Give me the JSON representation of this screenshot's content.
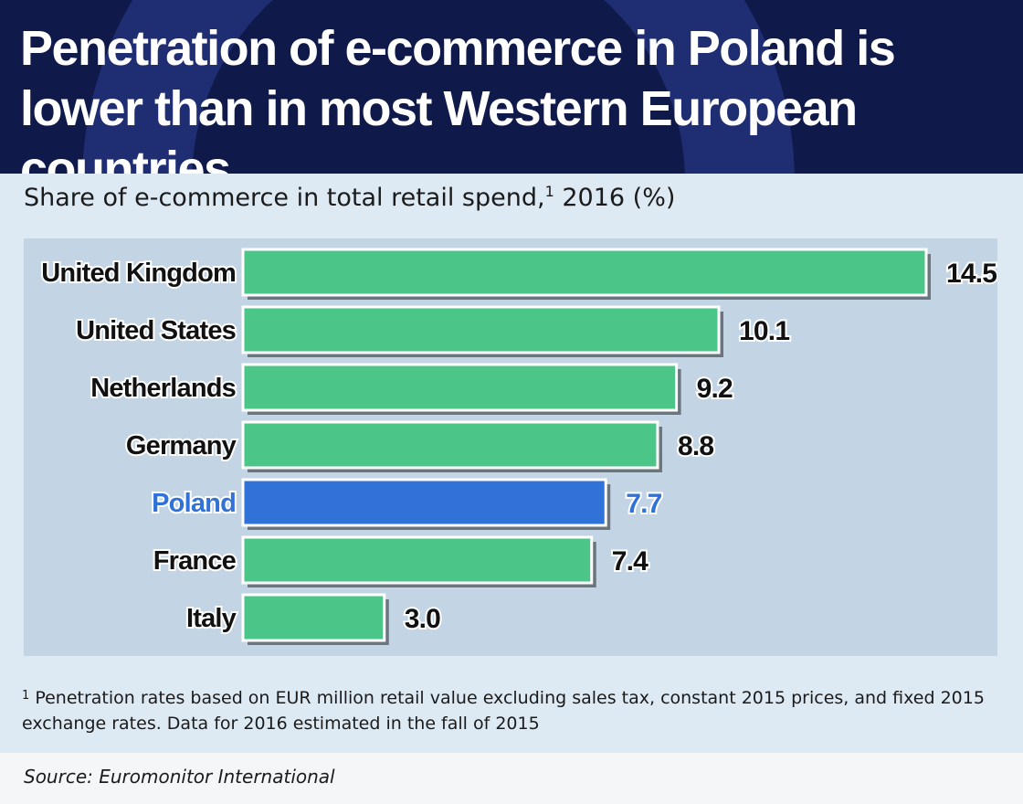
{
  "title": "Penetration of e-commerce in Poland is lower than in most Western European countries",
  "subtitle": "Share of e-commerce in total retail spend,",
  "subtitle_footnote_mark": "1",
  "subtitle_suffix": " 2016 (%)",
  "footnote_mark": "1",
  "footnote": "Penetration rates based on EUR million retail value excluding sales tax, constant 2015 prices, and fixed 2015 exchange rates. Data for 2016 estimated in the fall of 2015",
  "source": "Source: Euromonitor International",
  "colors": {
    "header_bg": "#0f1a4a",
    "bar_default": "#4cc589",
    "bar_highlight": "#3172d9",
    "highlight_text": "#3172d9",
    "label_text": "#111111"
  },
  "chart_data": {
    "type": "bar",
    "orientation": "horizontal",
    "categories": [
      "United Kingdom",
      "United States",
      "Netherlands",
      "Germany",
      "Poland",
      "France",
      "Italy"
    ],
    "values": [
      14.5,
      10.1,
      9.2,
      8.8,
      7.7,
      7.4,
      3.0
    ],
    "value_labels": [
      "14.5",
      "10.1",
      "9.2",
      "8.8",
      "7.7",
      "7.4",
      "3.0"
    ],
    "highlight": "Poland",
    "xlim": [
      0,
      14.5
    ],
    "grid": false,
    "legend": "none"
  }
}
